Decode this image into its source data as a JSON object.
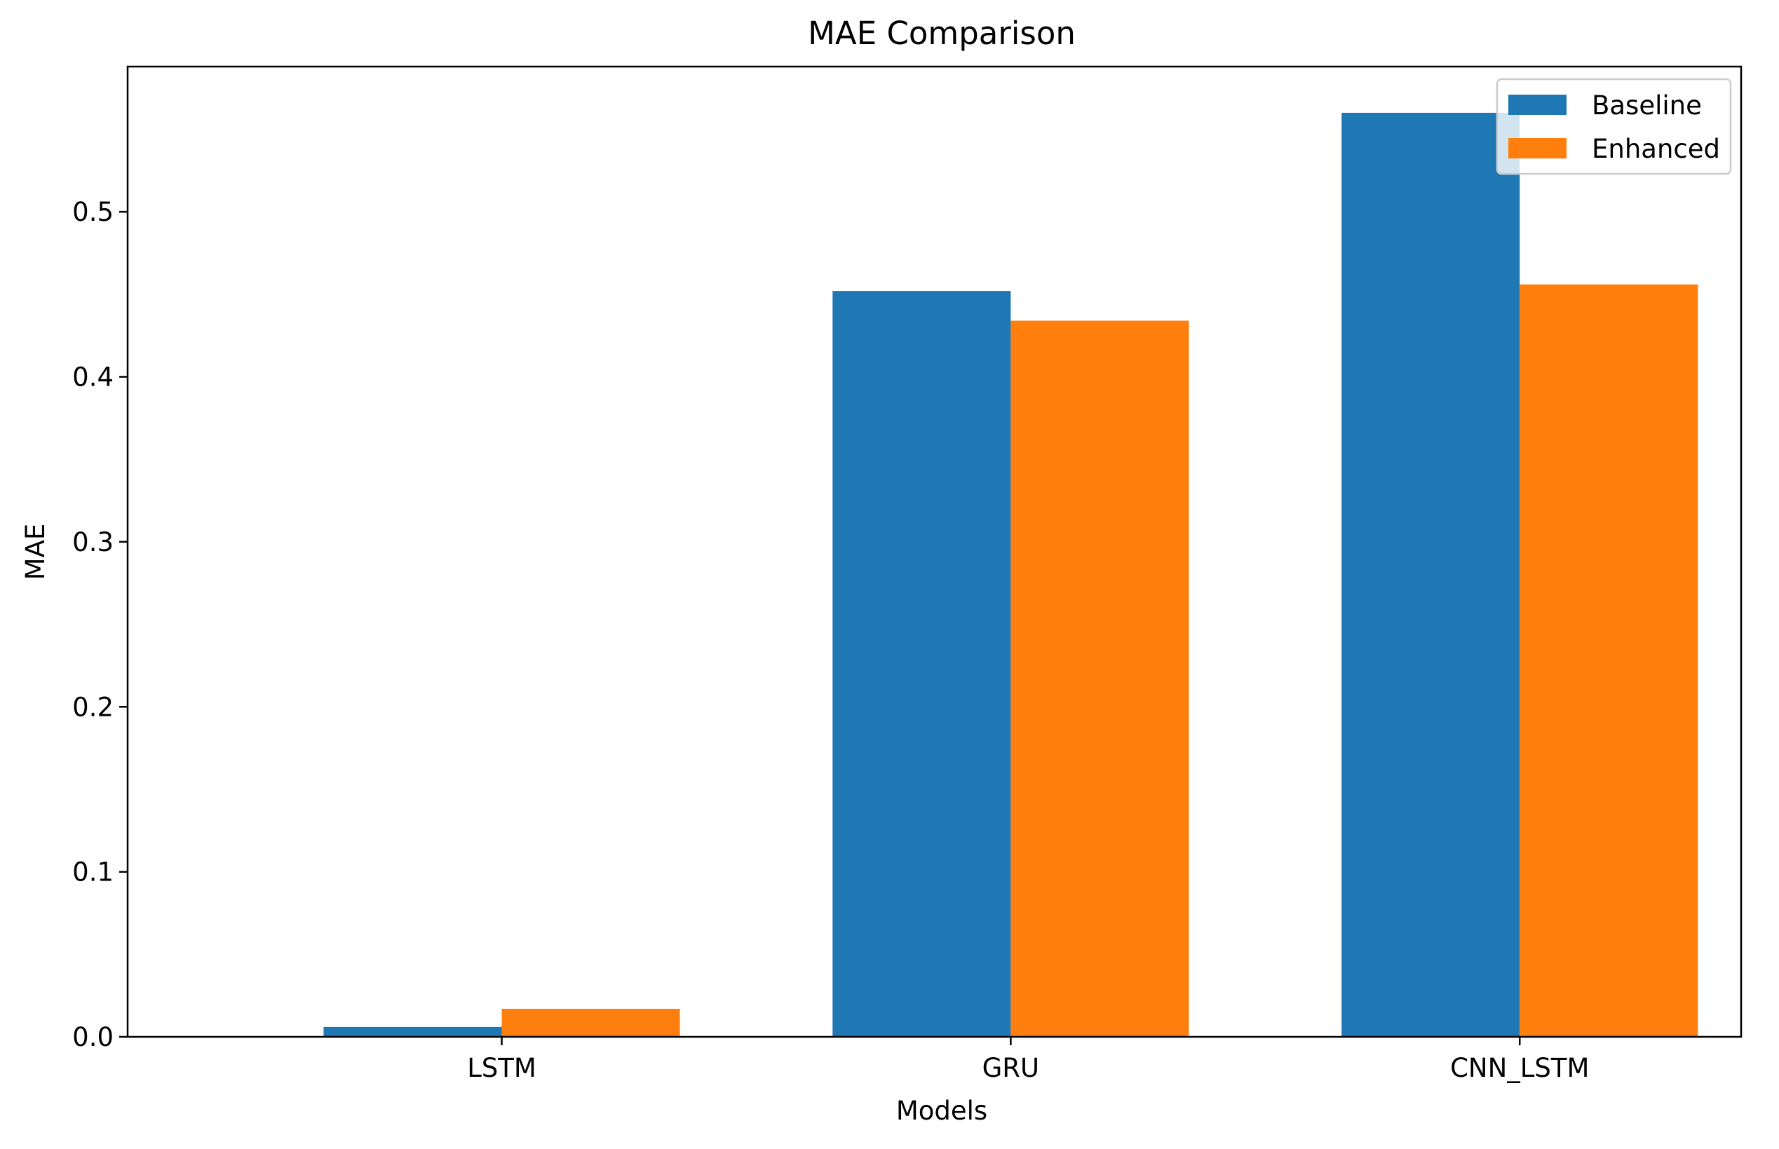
{
  "chart_data": {
    "type": "bar",
    "title": "MAE Comparison",
    "xlabel": "Models",
    "ylabel": "MAE",
    "categories": [
      "LSTM",
      "GRU",
      "CNN_LSTM"
    ],
    "series": [
      {
        "name": "Baseline",
        "values": [
          0.006,
          0.452,
          0.56
        ],
        "color": "#1f77b4"
      },
      {
        "name": "Enhanced",
        "values": [
          0.017,
          0.434,
          0.456
        ],
        "color": "#ff7f0e"
      }
    ],
    "ylim": [
      0,
      0.588
    ],
    "yticks": [
      0.0,
      0.1,
      0.2,
      0.3,
      0.4,
      0.5
    ],
    "ytick_labels": [
      "0.0",
      "0.1",
      "0.2",
      "0.3",
      "0.4",
      "0.5"
    ],
    "grid": false,
    "legend_position": "top-right"
  }
}
